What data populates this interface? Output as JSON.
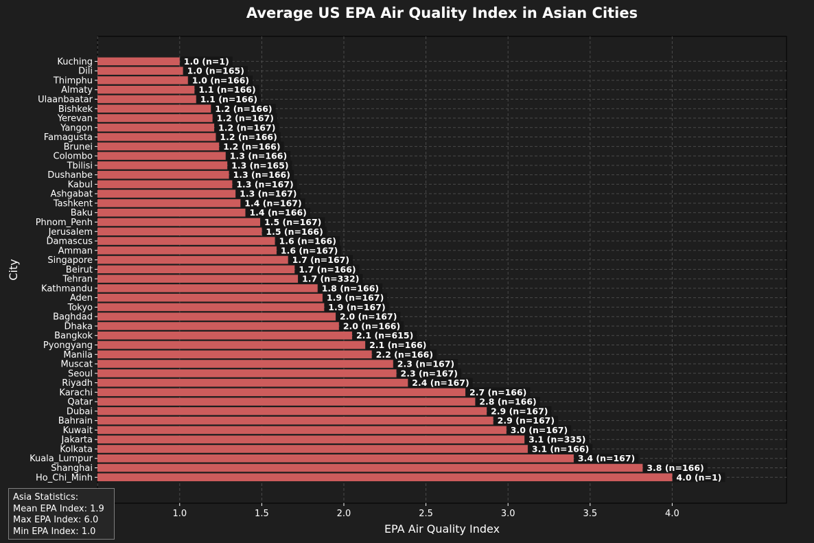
{
  "chart_data": {
    "type": "bar",
    "orientation": "horizontal",
    "title": "Average US EPA Air Quality Index in Asian Cities",
    "xlabel": "EPA Air Quality Index",
    "ylabel": "City",
    "xlim": [
      0,
      4.2
    ],
    "xticks": [
      "0.5",
      "1.0",
      "1.5",
      "2.0",
      "2.5",
      "3.0",
      "3.5",
      "4.0"
    ],
    "grid": true,
    "bar_color": "#cd5c5c",
    "categories": [
      "Kuching",
      "Dili",
      "Thimphu",
      "Almaty",
      "Ulaanbaatar",
      "Bishkek",
      "Yerevan",
      "Yangon",
      "Famagusta",
      "Brunei",
      "Colombo",
      "Tbilisi",
      "Dushanbe",
      "Kabul",
      "Ashgabat",
      "Tashkent",
      "Baku",
      "Phnom_Penh",
      "Jerusalem",
      "Damascus",
      "Amman",
      "Singapore",
      "Beirut",
      "Tehran",
      "Kathmandu",
      "Aden",
      "Tokyo",
      "Baghdad",
      "Dhaka",
      "Bangkok",
      "Pyongyang",
      "Manila",
      "Muscat",
      "Seoul",
      "Riyadh",
      "Karachi",
      "Qatar",
      "Dubai",
      "Bahrain",
      "Kuwait",
      "Jakarta",
      "Kolkata",
      "Kuala_Lumpur",
      "Shanghai",
      "Ho_Chi_Minh"
    ],
    "values": [
      1.0,
      1.02,
      1.05,
      1.09,
      1.1,
      1.19,
      1.2,
      1.21,
      1.22,
      1.24,
      1.28,
      1.29,
      1.3,
      1.32,
      1.34,
      1.37,
      1.4,
      1.49,
      1.5,
      1.58,
      1.59,
      1.66,
      1.7,
      1.72,
      1.84,
      1.87,
      1.88,
      1.95,
      1.97,
      2.05,
      2.13,
      2.17,
      2.3,
      2.32,
      2.39,
      2.74,
      2.8,
      2.87,
      2.91,
      2.99,
      3.1,
      3.12,
      3.4,
      3.82,
      4.0
    ],
    "data_labels": [
      "1.0 (n=1)",
      "1.0 (n=165)",
      "1.0 (n=166)",
      "1.1 (n=166)",
      "1.1 (n=166)",
      "1.2 (n=166)",
      "1.2 (n=167)",
      "1.2 (n=167)",
      "1.2 (n=166)",
      "1.2 (n=166)",
      "1.3 (n=166)",
      "1.3 (n=165)",
      "1.3 (n=166)",
      "1.3 (n=167)",
      "1.3 (n=167)",
      "1.4 (n=167)",
      "1.4 (n=166)",
      "1.5 (n=167)",
      "1.5 (n=166)",
      "1.6 (n=166)",
      "1.6 (n=167)",
      "1.7 (n=167)",
      "1.7 (n=166)",
      "1.7 (n=332)",
      "1.8 (n=166)",
      "1.9 (n=167)",
      "1.9 (n=167)",
      "2.0 (n=167)",
      "2.0 (n=166)",
      "2.1 (n=615)",
      "2.1 (n=166)",
      "2.2 (n=166)",
      "2.3 (n=167)",
      "2.3 (n=167)",
      "2.4 (n=167)",
      "2.7 (n=166)",
      "2.8 (n=166)",
      "2.9 (n=167)",
      "2.9 (n=167)",
      "3.0 (n=167)",
      "3.1 (n=335)",
      "3.1 (n=166)",
      "3.4 (n=167)",
      "3.8 (n=166)",
      "4.0 (n=1)"
    ]
  },
  "stats": {
    "heading": "Asia Statistics:",
    "mean": "Mean EPA Index: 1.9",
    "max": "Max EPA Index: 6.0",
    "min": "Min EPA Index: 1.0"
  }
}
